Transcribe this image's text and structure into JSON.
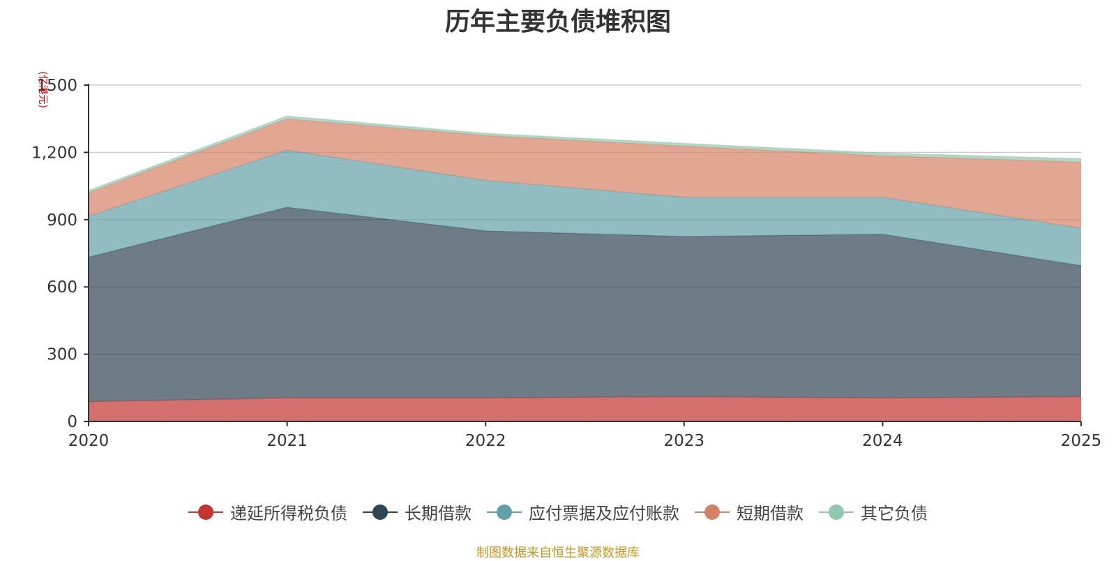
{
  "chart_data": {
    "type": "area",
    "stacked": true,
    "title": "历年主要负债堆积图",
    "unit": "(亿港元)",
    "x": [
      "2020",
      "2021",
      "2022",
      "2023",
      "2024",
      "2025"
    ],
    "ylim": [
      0,
      1500
    ],
    "yticks": [
      0,
      300,
      600,
      900,
      1200,
      1500
    ],
    "ytick_labels": [
      "0",
      "300",
      "600",
      "900",
      "1,200",
      "1500"
    ],
    "grid": true,
    "legend_position": "bottom-center",
    "series": [
      {
        "name": "递延所得税负债",
        "color": "#c23531",
        "values": [
          88,
          105,
          105,
          110,
          105,
          110
        ]
      },
      {
        "name": "长期借款",
        "color": "#2f4554",
        "values": [
          645,
          850,
          745,
          715,
          730,
          585
        ]
      },
      {
        "name": "应付票据及应付账款",
        "color": "#61a0a8",
        "values": [
          182,
          255,
          225,
          175,
          165,
          167
        ]
      },
      {
        "name": "短期借款",
        "color": "#d48265",
        "values": [
          105,
          140,
          200,
          228,
          185,
          295
        ]
      },
      {
        "name": "其它负债",
        "color": "#91c7ae",
        "values": [
          10,
          12,
          10,
          12,
          12,
          15
        ]
      }
    ]
  },
  "source_note": "制图数据来自恒生聚源数据库"
}
